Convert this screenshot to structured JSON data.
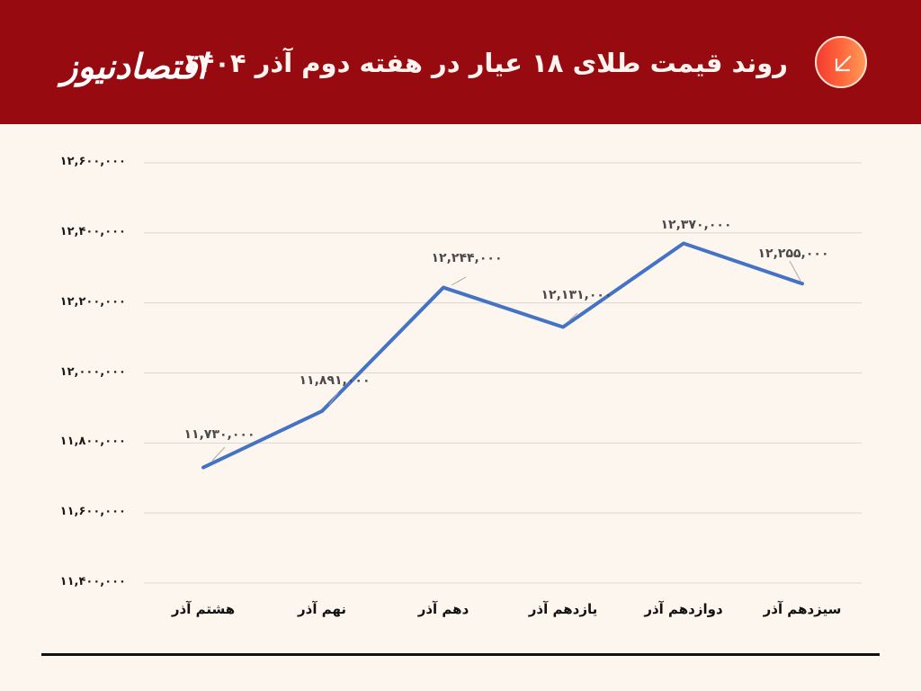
{
  "header": {
    "title": "روند قیمت طلای ۱۸ عیار در هفته دوم آذر ۱۴۰۴",
    "logo_text": "اقتصادنیوز",
    "badge_icon": "arrow-down-left-icon",
    "background_color": "#970a10",
    "badge_gradient": [
      "#f43a2f",
      "#ff9a5a"
    ]
  },
  "chart_data": {
    "type": "line",
    "title": "روند قیمت طلای ۱۸ عیار در هفته دوم آذر ۱۴۰۴",
    "xlabel": "",
    "ylabel": "",
    "categories": [
      "هشتم آذر",
      "نهم  آذر",
      "دهم آذر",
      "یازدهم آذر",
      "دوازدهم آذر",
      "سیزدهم آذر"
    ],
    "series": [
      {
        "name": "قیمت طلای ۱۸ عیار",
        "color": "#4472c4",
        "values": [
          11730000,
          11891000,
          12244000,
          12131000,
          12370000,
          12255000
        ],
        "data_labels": [
          "۱۱,۷۳۰,۰۰۰",
          "۱۱,۸۹۱,۰۰۰",
          "۱۲,۲۴۴,۰۰۰",
          "۱۲,۱۳۱,۰۰۰",
          "۱۲,۳۷۰,۰۰۰",
          "۱۲,۲۵۵,۰۰۰"
        ]
      }
    ],
    "ylim": [
      11400000,
      12600000
    ],
    "yticks": [
      12600000,
      12400000,
      12200000,
      12000000,
      11800000,
      11600000,
      11400000
    ],
    "ytick_labels": [
      "۱۲,۶۰۰,۰۰۰",
      "۱۲,۴۰۰,۰۰۰",
      "۱۲,۲۰۰,۰۰۰",
      "۱۲,۰۰۰,۰۰۰",
      "۱۱,۸۰۰,۰۰۰",
      "۱۱,۶۰۰,۰۰۰",
      "۱۱,۴۰۰,۰۰۰"
    ],
    "grid": true,
    "legend": "none"
  }
}
